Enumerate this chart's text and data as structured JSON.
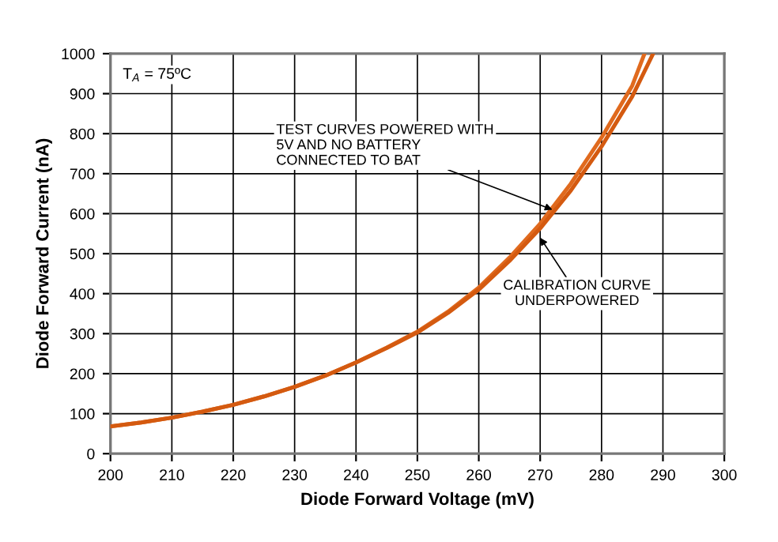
{
  "chart_data": {
    "type": "line",
    "xlabel": "Diode Forward Voltage (mV)",
    "ylabel": "Diode Forward Current (nA)",
    "series": [
      {
        "color": "#e06a1e",
        "x": [
          200,
          205,
          210,
          215,
          220,
          225,
          230,
          235,
          240,
          245,
          250,
          255,
          260,
          265,
          270,
          275,
          280,
          285,
          287
        ],
        "values": [
          68,
          78,
          90,
          105,
          122,
          143,
          167,
          195,
          228,
          265,
          305,
          355,
          415,
          490,
          575,
          675,
          790,
          920,
          1000
        ]
      },
      {
        "color": "#d45a10",
        "x": [
          200,
          205,
          210,
          215,
          220,
          225,
          230,
          235,
          240,
          245,
          250,
          255,
          260,
          265,
          270,
          275,
          280,
          285,
          288.4
        ],
        "values": [
          68,
          78,
          90,
          105,
          122,
          143,
          167,
          195,
          228,
          264,
          303,
          352,
          410,
          482,
          563,
          658,
          768,
          893,
          1000
        ]
      }
    ],
    "xlim": [
      200,
      300
    ],
    "ylim": [
      0,
      1000
    ],
    "xticks": [
      200,
      210,
      220,
      230,
      240,
      250,
      260,
      270,
      280,
      290,
      300
    ],
    "yticks": [
      0,
      100,
      200,
      300,
      400,
      500,
      600,
      700,
      800,
      900,
      1000
    ],
    "grid": true,
    "marker": "none",
    "line_style": "solid",
    "legend": false,
    "annotations": [
      "T$_{A}$ = 75ºC",
      {
        "text": "TEST CURVES POWERED WITH\n5V AND NO BATTERY\nCONNECTED TO BAT",
        "x": 272,
        "y": 610
      },
      {
        "text": "CALIBRATION CURVE\nUNDERPOWERED",
        "x": 270,
        "y": 540
      }
    ]
  }
}
